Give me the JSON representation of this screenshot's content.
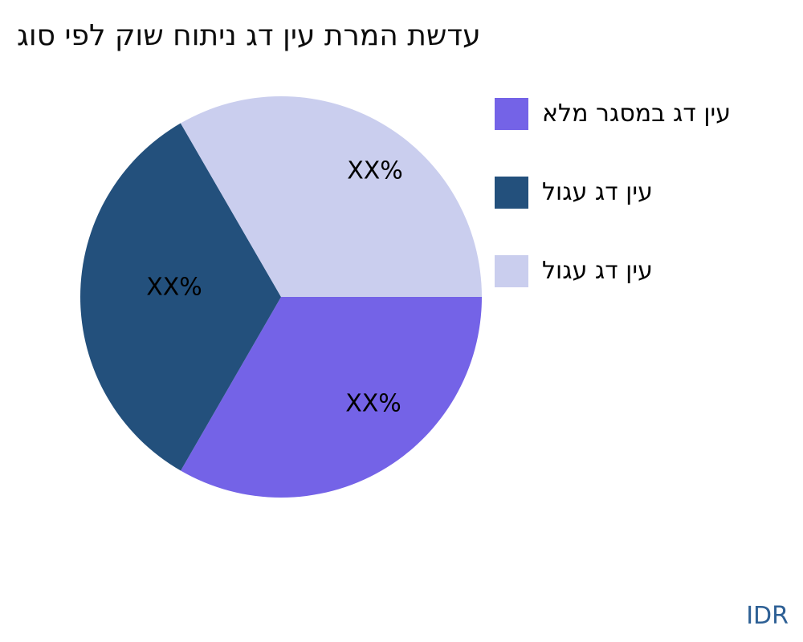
{
  "title": "עדשת המרת עין דג ניתוח שוק לפי סוג",
  "watermark": {
    "label": "IDR",
    "color": "#2E6095"
  },
  "chart_data": {
    "type": "pie",
    "title": "עדשת המרת עין דג ניתוח שוק לפי סוג",
    "legend_position": "right",
    "start_angle_deg": 0,
    "direction": "clockwise",
    "slices": [
      {
        "label": "עין דג במסגר מלא",
        "value": 33.33,
        "display_pct": "XX%",
        "color": "#7463E7"
      },
      {
        "label": "עין דג עגול",
        "value": 33.33,
        "display_pct": "XX%",
        "color": "#23507C"
      },
      {
        "label": "עין דג עגול",
        "value": 33.34,
        "display_pct": "XX%",
        "color": "#CACEEE"
      }
    ]
  }
}
